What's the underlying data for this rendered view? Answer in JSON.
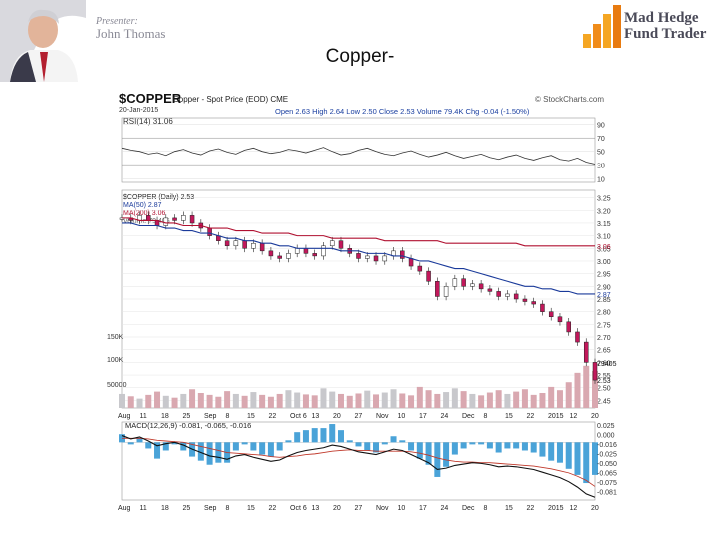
{
  "header": {
    "presenter_label": "Presenter:",
    "presenter_name": "John Thomas",
    "brand_line1": "Mad Hedge",
    "brand_line2": "Fund Trader",
    "slide_title": "Copper-"
  },
  "chart_data": {
    "type": "line",
    "title": "$COPPER",
    "subtitle": "Copper - Spot Price (EOD) CME",
    "date_label": "20-Jan-2015",
    "quote": "Open 2.63 High 2.64 Low 2.50 Close 2.53 Volume 79.4K Chg -0.04 (-1.50%)",
    "source": "© StockCharts.com",
    "x_labels": [
      "Aug",
      "11",
      "18",
      "25",
      "Sep",
      "8",
      "15",
      "22",
      "Oct 6",
      "13",
      "20",
      "27",
      "Nov",
      "10",
      "17",
      "24",
      "Dec",
      "8",
      "15",
      "22",
      "2015",
      "12",
      "20"
    ],
    "rsi": {
      "label": "RSI(14) 31.06",
      "ticks": [
        90,
        70,
        50,
        30,
        10
      ],
      "last_tag": "31.06",
      "values": [
        55,
        52,
        50,
        46,
        48,
        44,
        50,
        53,
        48,
        45,
        51,
        54,
        49,
        46,
        52,
        55,
        50,
        47,
        49,
        53,
        51,
        48,
        52,
        56,
        50,
        45,
        47,
        52,
        55,
        50,
        46,
        44,
        48,
        51,
        46,
        42,
        45,
        49,
        44,
        40,
        43,
        46,
        41,
        38,
        42,
        45,
        40,
        37,
        41,
        44,
        38,
        36,
        40,
        34,
        31
      ]
    },
    "price": {
      "legend": [
        "$COPPER (Daily) 2.53",
        "MA(50) 2.87",
        "MA(200) 3.06",
        "Volume 79,405"
      ],
      "y_ticks": [
        3.25,
        3.2,
        3.15,
        3.1,
        3.05,
        3.0,
        2.95,
        2.9,
        2.85,
        2.8,
        2.75,
        2.7,
        2.65,
        2.6,
        2.55,
        2.5,
        2.45
      ],
      "ylim": [
        2.42,
        3.28
      ],
      "close": [
        3.17,
        3.16,
        3.18,
        3.16,
        3.14,
        3.17,
        3.16,
        3.18,
        3.15,
        3.13,
        3.1,
        3.08,
        3.06,
        3.08,
        3.05,
        3.07,
        3.04,
        3.02,
        3.01,
        3.03,
        3.05,
        3.03,
        3.02,
        3.06,
        3.08,
        3.05,
        3.03,
        3.01,
        3.02,
        3.0,
        3.02,
        3.04,
        3.01,
        2.98,
        2.96,
        2.92,
        2.86,
        2.9,
        2.93,
        2.9,
        2.91,
        2.89,
        2.88,
        2.86,
        2.87,
        2.85,
        2.84,
        2.83,
        2.8,
        2.78,
        2.76,
        2.72,
        2.68,
        2.6,
        2.53
      ],
      "ma50": [
        3.15,
        3.15,
        3.14,
        3.14,
        3.14,
        3.13,
        3.13,
        3.12,
        3.12,
        3.11,
        3.11,
        3.1,
        3.09,
        3.09,
        3.08,
        3.08,
        3.07,
        3.07,
        3.06,
        3.06,
        3.05,
        3.05,
        3.05,
        3.05,
        3.05,
        3.04,
        3.04,
        3.04,
        3.03,
        3.03,
        3.03,
        3.02,
        3.02,
        3.01,
        3.0,
        3.0,
        2.99,
        2.98,
        2.97,
        2.97,
        2.96,
        2.95,
        2.94,
        2.93,
        2.92,
        2.91,
        2.9,
        2.9,
        2.89,
        2.89,
        2.88,
        2.88,
        2.87,
        2.87,
        2.87
      ],
      "ma200": [
        3.17,
        3.17,
        3.16,
        3.16,
        3.16,
        3.15,
        3.15,
        3.14,
        3.14,
        3.14,
        3.13,
        3.13,
        3.13,
        3.12,
        3.12,
        3.12,
        3.11,
        3.11,
        3.11,
        3.11,
        3.1,
        3.1,
        3.1,
        3.1,
        3.09,
        3.09,
        3.09,
        3.09,
        3.09,
        3.09,
        3.08,
        3.08,
        3.08,
        3.08,
        3.08,
        3.08,
        3.08,
        3.07,
        3.07,
        3.07,
        3.07,
        3.07,
        3.07,
        3.07,
        3.07,
        3.07,
        3.06,
        3.06,
        3.06,
        3.06,
        3.06,
        3.06,
        3.06,
        3.06,
        3.06
      ],
      "tags": {
        "ma200": "3.06",
        "ma50": "2.87",
        "close": "2.53",
        "volume": "79405"
      }
    },
    "volume": {
      "axis_labels": [
        "150K",
        "100K",
        "50000"
      ],
      "values": [
        30,
        25,
        20,
        28,
        35,
        26,
        22,
        30,
        40,
        32,
        28,
        24,
        36,
        30,
        26,
        34,
        28,
        24,
        30,
        38,
        33,
        29,
        27,
        42,
        35,
        30,
        26,
        31,
        37,
        29,
        33,
        40,
        31,
        27,
        45,
        38,
        30,
        34,
        42,
        36,
        30,
        27,
        33,
        38,
        30,
        35,
        40,
        28,
        32,
        45,
        38,
        55,
        75,
        90,
        79
      ]
    },
    "macd": {
      "label": "MACD(12,26,9) -0.081, -0.065, -0.016",
      "ticks": [
        "0.025",
        "0.000",
        "-0.016",
        "-0.025",
        "-0.050",
        "-0.065",
        "-0.075",
        "-0.081"
      ],
      "macd": [
        0.01,
        0.005,
        0.008,
        0.002,
        -0.005,
        -0.002,
        0.0,
        -0.004,
        -0.01,
        -0.015,
        -0.02,
        -0.022,
        -0.025,
        -0.02,
        -0.018,
        -0.022,
        -0.025,
        -0.028,
        -0.026,
        -0.02,
        -0.015,
        -0.012,
        -0.01,
        -0.008,
        -0.004,
        -0.006,
        -0.01,
        -0.014,
        -0.016,
        -0.018,
        -0.014,
        -0.01,
        -0.012,
        -0.018,
        -0.024,
        -0.03,
        -0.04,
        -0.038,
        -0.034,
        -0.032,
        -0.03,
        -0.031,
        -0.033,
        -0.036,
        -0.035,
        -0.036,
        -0.038,
        -0.04,
        -0.044,
        -0.048,
        -0.052,
        -0.058,
        -0.066,
        -0.076,
        -0.081
      ],
      "signal": [
        0.006,
        0.006,
        0.006,
        0.005,
        0.003,
        0.002,
        0.001,
        0.0,
        -0.003,
        -0.006,
        -0.009,
        -0.012,
        -0.015,
        -0.016,
        -0.017,
        -0.018,
        -0.019,
        -0.021,
        -0.022,
        -0.021,
        -0.02,
        -0.018,
        -0.017,
        -0.015,
        -0.013,
        -0.012,
        -0.011,
        -0.012,
        -0.012,
        -0.013,
        -0.013,
        -0.013,
        -0.013,
        -0.014,
        -0.016,
        -0.019,
        -0.023,
        -0.026,
        -0.028,
        -0.029,
        -0.029,
        -0.03,
        -0.03,
        -0.031,
        -0.032,
        -0.033,
        -0.034,
        -0.035,
        -0.037,
        -0.039,
        -0.042,
        -0.045,
        -0.05,
        -0.056,
        -0.065
      ]
    }
  }
}
